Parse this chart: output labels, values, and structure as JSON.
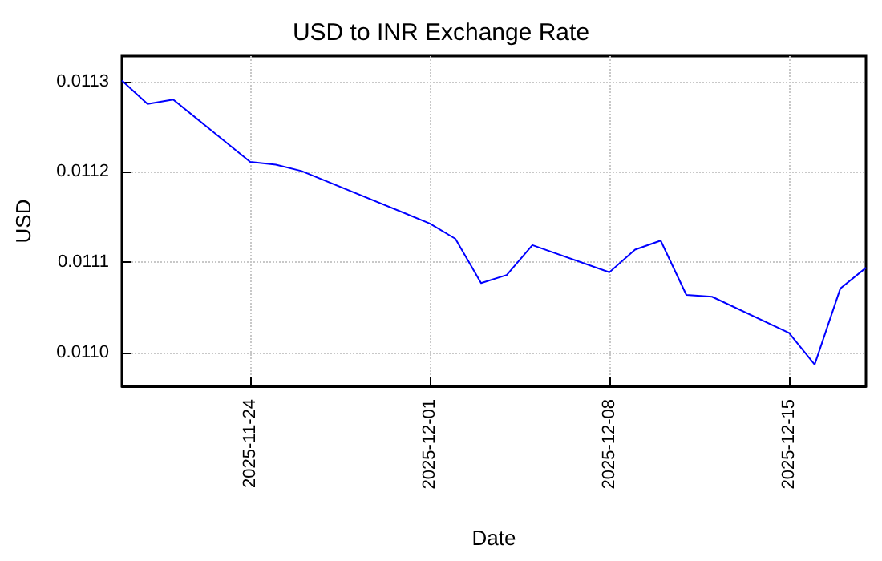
{
  "chart_data": {
    "type": "line",
    "title": "USD to INR Exchange Rate",
    "xlabel": "Date",
    "ylabel": "USD",
    "x": [
      "2025-11-19",
      "2025-11-20",
      "2025-11-21",
      "2025-11-24",
      "2025-11-25",
      "2025-11-26",
      "2025-12-01",
      "2025-12-02",
      "2025-12-03",
      "2025-12-04",
      "2025-12-05",
      "2025-12-08",
      "2025-12-09",
      "2025-12-10",
      "2025-12-11",
      "2025-12-12",
      "2025-12-15",
      "2025-12-16",
      "2025-12-17",
      "2025-12-18"
    ],
    "series": [
      {
        "color": "#0000ff",
        "values": [
          0.011301,
          0.011275,
          0.01128,
          0.011211,
          0.011208,
          0.011201,
          0.011143,
          0.011126,
          0.011077,
          0.011086,
          0.011119,
          0.011089,
          0.011114,
          0.011124,
          0.011064,
          0.011062,
          0.011022,
          0.010987,
          0.011071,
          0.011094
        ]
      }
    ],
    "xlim": [
      "2025-11-19",
      "2025-12-18"
    ],
    "xticks": [
      "2025-11-24",
      "2025-12-01",
      "2025-12-08",
      "2025-12-15"
    ],
    "ylim": [
      0.010963,
      0.011328
    ],
    "yticks": [
      {
        "value": 0.011,
        "label": "0.0110"
      },
      {
        "value": 0.0111,
        "label": "0.0111"
      },
      {
        "value": 0.0112,
        "label": "0.0112"
      },
      {
        "value": 0.0113,
        "label": "0.0113"
      }
    ],
    "grid": true,
    "marker": "none",
    "line_style": "solid"
  }
}
